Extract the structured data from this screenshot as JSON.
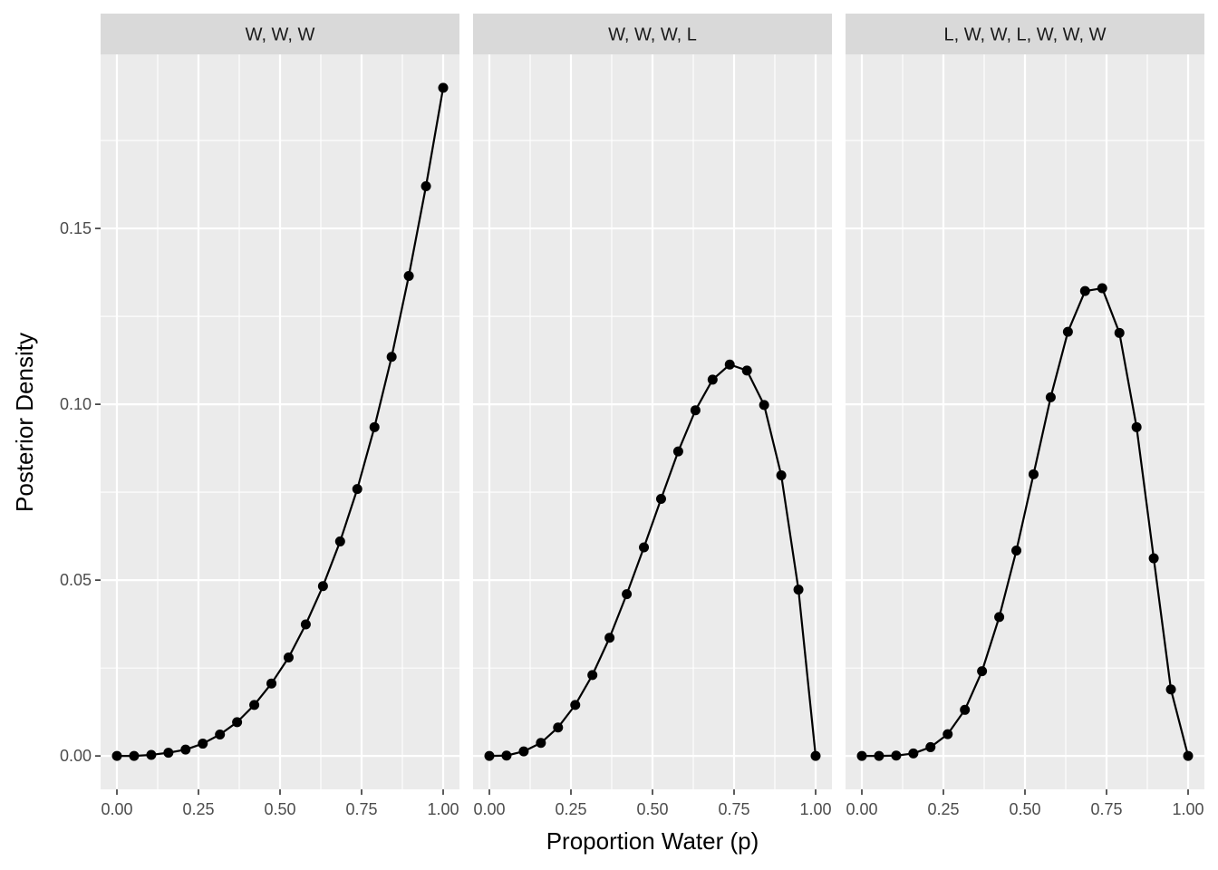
{
  "chart_data": {
    "type": "line",
    "xlabel": "Proportion Water (p)",
    "ylabel": "Posterior Density",
    "xlim": [
      -0.05,
      1.05
    ],
    "ylim": [
      -0.0095,
      0.1995
    ],
    "x_ticks": [
      0,
      0.25,
      0.5,
      0.75,
      1.0
    ],
    "x_tick_labels": [
      "0.00",
      "0.25",
      "0.50",
      "0.75",
      "1.00"
    ],
    "y_ticks": [
      0,
      0.05,
      0.1,
      0.15
    ],
    "y_tick_labels": [
      "0.00",
      "0.05",
      "0.10",
      "0.15"
    ],
    "grid": true,
    "markers": "points",
    "x": [
      0.0,
      0.0526,
      0.1053,
      0.1579,
      0.2105,
      0.2632,
      0.3158,
      0.3684,
      0.4211,
      0.4737,
      0.5263,
      0.5789,
      0.6316,
      0.6842,
      0.7368,
      0.7895,
      0.8421,
      0.8947,
      0.9474,
      1.0
    ],
    "panels": [
      {
        "title": "W, W, W",
        "values": [
          0.0,
          0.0,
          0.0003,
          0.0009,
          0.0018,
          0.0035,
          0.0061,
          0.0096,
          0.0145,
          0.0206,
          0.028,
          0.0374,
          0.0483,
          0.061,
          0.0759,
          0.0935,
          0.1135,
          0.1365,
          0.162,
          0.19
        ]
      },
      {
        "title": "W, W, W, L",
        "values": [
          0.0,
          0.0001,
          0.0013,
          0.0037,
          0.0081,
          0.0145,
          0.023,
          0.0336,
          0.046,
          0.0593,
          0.0731,
          0.0866,
          0.0983,
          0.107,
          0.1113,
          0.1096,
          0.0998,
          0.0798,
          0.0473,
          0.0
        ]
      },
      {
        "title": "L, W, W, L, W, W, W",
        "values": [
          0.0,
          0.0,
          0.0001,
          0.0007,
          0.0025,
          0.0062,
          0.0131,
          0.0241,
          0.0395,
          0.0584,
          0.0801,
          0.102,
          0.1206,
          0.1322,
          0.133,
          0.1203,
          0.0935,
          0.0562,
          0.0189,
          0.0
        ]
      }
    ]
  }
}
